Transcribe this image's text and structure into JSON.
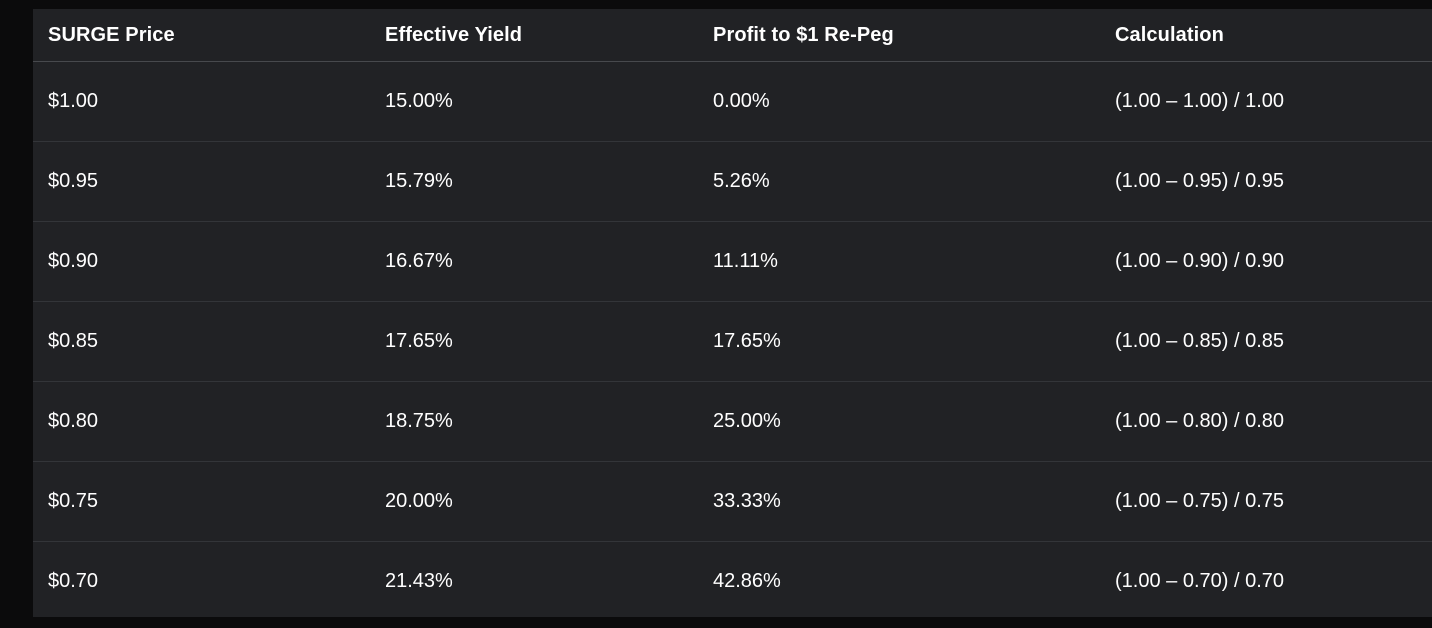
{
  "theme": {
    "page_background": "#0b0b0c",
    "card_background": "#212225",
    "header_divider_color": "#47494d",
    "row_divider_color": "#333539",
    "text_color": "#ffffff"
  },
  "table": {
    "columns": [
      "SURGE Price",
      "Effective Yield",
      "Profit to $1 Re-Peg",
      "Calculation"
    ],
    "rows": [
      [
        "$1.00",
        "15.00%",
        "0.00%",
        "(1.00 – 1.00) / 1.00"
      ],
      [
        "$0.95",
        "15.79%",
        "5.26%",
        "(1.00 – 0.95) / 0.95"
      ],
      [
        "$0.90",
        "16.67%",
        "11.11%",
        "(1.00 – 0.90) / 0.90"
      ],
      [
        "$0.85",
        "17.65%",
        "17.65%",
        "(1.00 – 0.85) / 0.85"
      ],
      [
        "$0.80",
        "18.75%",
        "25.00%",
        "(1.00 – 0.80) / 0.80"
      ],
      [
        "$0.75",
        "20.00%",
        "33.33%",
        "(1.00 – 0.75) / 0.75"
      ],
      [
        "$0.70",
        "21.43%",
        "42.86%",
        "(1.00 – 0.70) / 0.70"
      ]
    ]
  }
}
